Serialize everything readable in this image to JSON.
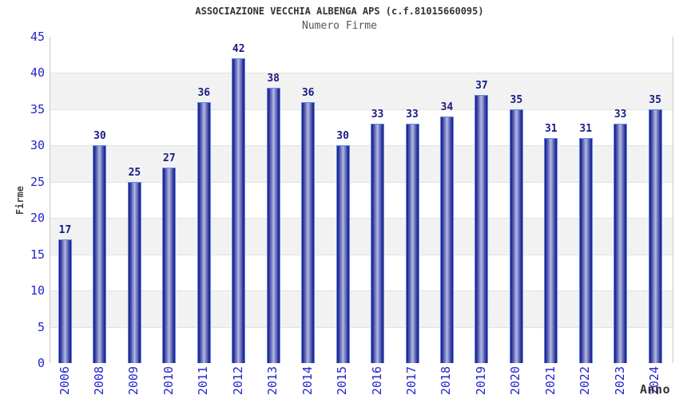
{
  "chart_data": {
    "type": "bar",
    "title": "ASSOCIAZIONE VECCHIA ALBENGA APS (c.f.81015660095)",
    "subtitle": "Numero Firme",
    "xlabel": "Anno",
    "ylabel": "Firme",
    "categories": [
      "2006",
      "2008",
      "2009",
      "2010",
      "2011",
      "2012",
      "2013",
      "2014",
      "2015",
      "2016",
      "2017",
      "2018",
      "2019",
      "2020",
      "2021",
      "2022",
      "2023",
      "2024"
    ],
    "values": [
      17,
      30,
      25,
      27,
      36,
      42,
      38,
      36,
      30,
      33,
      33,
      34,
      37,
      35,
      31,
      31,
      33,
      35
    ],
    "ylim": [
      0,
      45
    ],
    "ytick_step": 5,
    "yticks": [
      0,
      5,
      10,
      15,
      20,
      25,
      30,
      35,
      40,
      45
    ],
    "grid": "alternating-horizontal-bands",
    "legend": "none",
    "colors": {
      "bar_edge": "#1e1e87",
      "bar_center": "#b2bae5",
      "bar_border": "#5b8dee",
      "tick_label": "#2424cc",
      "value_label": "#1a1a85",
      "band_gray": "#f2f2f2",
      "band_white": "#ffffff",
      "gridline": "#e2e2e2",
      "plot_border": "#c9c9c9",
      "title_color": "#333333",
      "subtitle_color": "#555555"
    }
  }
}
